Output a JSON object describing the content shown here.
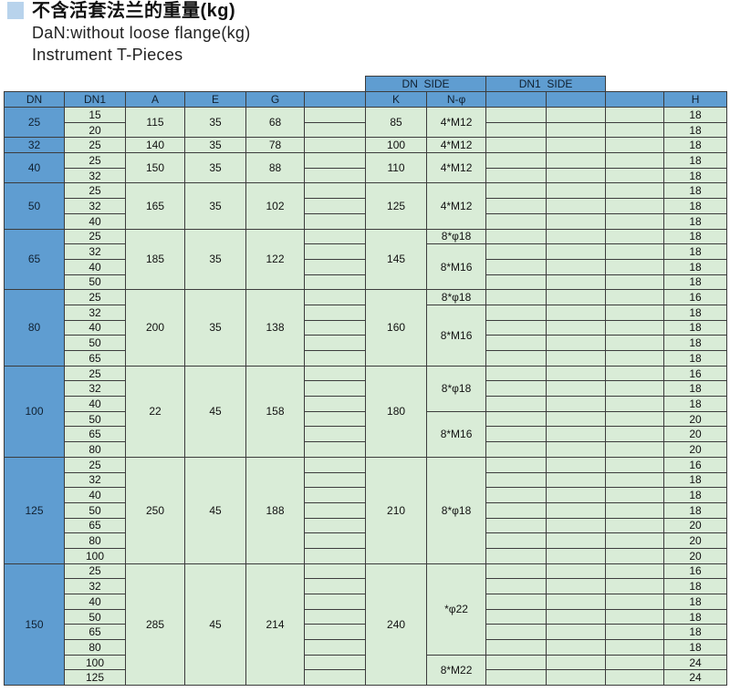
{
  "header": {
    "title_cn": "不含活套法兰的重量(kg)",
    "subtitle1": "DaN:without loose flange(kg)",
    "subtitle2": "Instrument T-Pieces"
  },
  "colors": {
    "header_blue": "#5f9dd1",
    "cell_green": "#d9ecd7",
    "bullet_blue": "#b8d3ec",
    "grid_line": "#3c3c3c"
  },
  "table": {
    "band": {
      "dn_side": "DN  SIDE",
      "dn1_side": "DN1  SIDE"
    },
    "headers": [
      "DN",
      "DN1",
      "A",
      "E",
      "G",
      "",
      "K",
      "N-φ",
      "",
      "",
      "",
      "H"
    ],
    "groups": [
      {
        "dn": "25",
        "a": "115",
        "e": "35",
        "g": "68",
        "k": "85",
        "n_specs": [
          {
            "label": "4*M12",
            "span": 2
          }
        ],
        "rows": [
          {
            "dn1": "15",
            "h": "18"
          },
          {
            "dn1": "20",
            "h": "18"
          }
        ]
      },
      {
        "dn": "32",
        "a": "140",
        "e": "35",
        "g": "78",
        "k": "100",
        "n_specs": [
          {
            "label": "4*M12",
            "span": 1
          }
        ],
        "rows": [
          {
            "dn1": "25",
            "h": "18"
          }
        ]
      },
      {
        "dn": "40",
        "a": "150",
        "e": "35",
        "g": "88",
        "k": "110",
        "n_specs": [
          {
            "label": "4*M12",
            "span": 2
          }
        ],
        "rows": [
          {
            "dn1": "25",
            "h": "18"
          },
          {
            "dn1": "32",
            "h": "18"
          }
        ]
      },
      {
        "dn": "50",
        "a": "165",
        "e": "35",
        "g": "102",
        "k": "125",
        "n_specs": [
          {
            "label": "4*M12",
            "span": 3
          }
        ],
        "rows": [
          {
            "dn1": "25",
            "h": "18"
          },
          {
            "dn1": "32",
            "h": "18"
          },
          {
            "dn1": "40",
            "h": "18"
          }
        ]
      },
      {
        "dn": "65",
        "a": "185",
        "e": "35",
        "g": "122",
        "k": "145",
        "n_specs": [
          {
            "label": "8*φ18",
            "span": 1
          },
          {
            "label": "8*M16",
            "span": 3
          }
        ],
        "rows": [
          {
            "dn1": "25",
            "h": "18"
          },
          {
            "dn1": "32",
            "h": "18"
          },
          {
            "dn1": "40",
            "h": "18"
          },
          {
            "dn1": "50",
            "h": "18"
          }
        ]
      },
      {
        "dn": "80",
        "a": "200",
        "e": "35",
        "g": "138",
        "k": "160",
        "n_specs": [
          {
            "label": "8*φ18",
            "span": 1
          },
          {
            "label": "8*M16",
            "span": 4
          }
        ],
        "rows": [
          {
            "dn1": "25",
            "h": "16"
          },
          {
            "dn1": "32",
            "h": "18"
          },
          {
            "dn1": "40",
            "h": "18"
          },
          {
            "dn1": "50",
            "h": "18"
          },
          {
            "dn1": "65",
            "h": "18"
          }
        ]
      },
      {
        "dn": "100",
        "a": "22",
        "e": "45",
        "g": "158",
        "k": "180",
        "n_specs": [
          {
            "label": "8*φ18",
            "span": 3
          },
          {
            "label": "8*M16",
            "span": 3
          }
        ],
        "rows": [
          {
            "dn1": "25",
            "h": "16"
          },
          {
            "dn1": "32",
            "h": "18"
          },
          {
            "dn1": "40",
            "h": "18"
          },
          {
            "dn1": "50",
            "h": "20"
          },
          {
            "dn1": "65",
            "h": "20"
          },
          {
            "dn1": "80",
            "h": "20"
          }
        ]
      },
      {
        "dn": "125",
        "a": "250",
        "e": "45",
        "g": "188",
        "k": "210",
        "n_specs": [
          {
            "label": "8*φ18",
            "span": 7
          }
        ],
        "rows": [
          {
            "dn1": "25",
            "h": "16"
          },
          {
            "dn1": "32",
            "h": "18"
          },
          {
            "dn1": "40",
            "h": "18"
          },
          {
            "dn1": "50",
            "h": "18"
          },
          {
            "dn1": "65",
            "h": "20"
          },
          {
            "dn1": "80",
            "h": "20"
          },
          {
            "dn1": "100",
            "h": "20"
          }
        ]
      },
      {
        "dn": "150",
        "a": "285",
        "e": "45",
        "g": "214",
        "k": "240",
        "n_specs": [
          {
            "label": "*φ22",
            "span": 6
          },
          {
            "label": "8*M22",
            "span": 2
          }
        ],
        "rows": [
          {
            "dn1": "25",
            "h": "16"
          },
          {
            "dn1": "32",
            "h": "18"
          },
          {
            "dn1": "40",
            "h": "18"
          },
          {
            "dn1": "50",
            "h": "18"
          },
          {
            "dn1": "65",
            "h": "18"
          },
          {
            "dn1": "80",
            "h": "18"
          },
          {
            "dn1": "100",
            "h": "24"
          },
          {
            "dn1": "125",
            "h": "24"
          }
        ]
      }
    ]
  }
}
